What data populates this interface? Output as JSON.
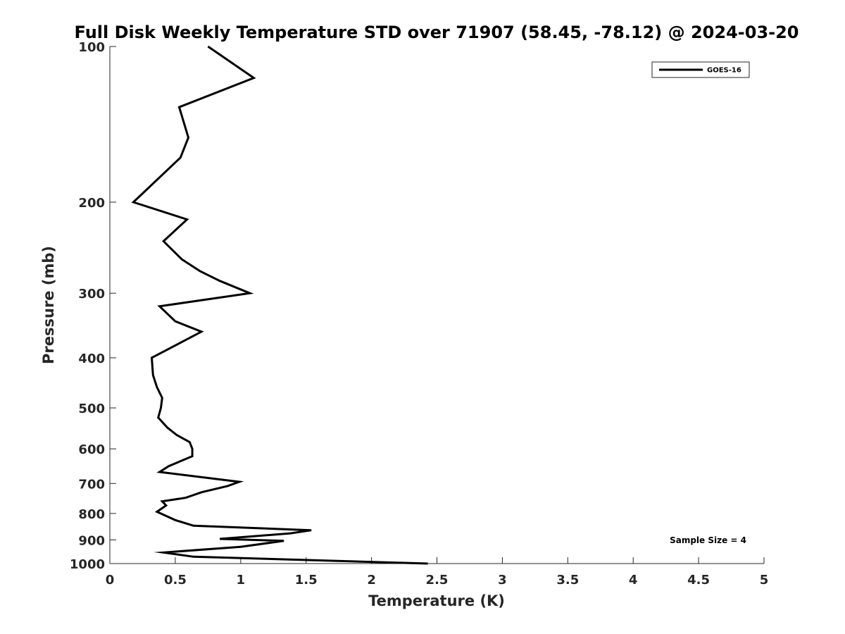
{
  "chart_data": {
    "type": "line",
    "title": "Full Disk Weekly Temperature STD over 71907 (58.45, -78.12) @ 2024-03-20",
    "xlabel": "Temperature (K)",
    "ylabel": "Pressure (mb)",
    "xlim": [
      0,
      5
    ],
    "ylim": [
      100,
      1000
    ],
    "y_scale": "log",
    "y_reversed": true,
    "x_ticks": [
      0,
      0.5,
      1,
      1.5,
      2,
      2.5,
      3,
      3.5,
      4,
      4.5,
      5
    ],
    "x_tick_labels": [
      "0",
      "0.5",
      "1",
      "1.5",
      "2",
      "2.5",
      "3",
      "3.5",
      "4",
      "4.5",
      "5"
    ],
    "y_ticks": [
      100,
      200,
      300,
      400,
      500,
      600,
      700,
      800,
      900,
      1000
    ],
    "y_tick_labels": [
      "100",
      "200",
      "300",
      "400",
      "500",
      "600",
      "700",
      "800",
      "900",
      "1000"
    ],
    "grid": false,
    "legend": {
      "position": "top-right",
      "entries": [
        "GOES-16"
      ]
    },
    "annotation": "Sample Size = 4",
    "series": [
      {
        "name": "GOES-16",
        "color": "#000000",
        "points": [
          [
            0.75,
            100
          ],
          [
            1.1,
            115
          ],
          [
            0.53,
            131
          ],
          [
            0.6,
            150
          ],
          [
            0.54,
            164
          ],
          [
            0.18,
            200
          ],
          [
            0.59,
            216
          ],
          [
            0.41,
            238
          ],
          [
            0.55,
            258
          ],
          [
            0.69,
            272
          ],
          [
            0.84,
            284
          ],
          [
            1.07,
            300
          ],
          [
            0.38,
            318
          ],
          [
            0.5,
            340
          ],
          [
            0.7,
            356
          ],
          [
            0.32,
            400
          ],
          [
            0.33,
            432
          ],
          [
            0.36,
            456
          ],
          [
            0.4,
            478
          ],
          [
            0.39,
            500
          ],
          [
            0.37,
            522
          ],
          [
            0.44,
            546
          ],
          [
            0.51,
            564
          ],
          [
            0.61,
            582
          ],
          [
            0.63,
            600
          ],
          [
            0.63,
            620
          ],
          [
            0.45,
            648
          ],
          [
            0.38,
            665
          ],
          [
            0.99,
            695
          ],
          [
            0.9,
            708
          ],
          [
            0.7,
            728
          ],
          [
            0.58,
            746
          ],
          [
            0.4,
            758
          ],
          [
            0.43,
            772
          ],
          [
            0.36,
            794
          ],
          [
            0.5,
            824
          ],
          [
            0.64,
            845
          ],
          [
            1.54,
            862
          ],
          [
            1.38,
            874
          ],
          [
            0.84,
            896
          ],
          [
            1.33,
            904
          ],
          [
            1.0,
            928
          ],
          [
            0.41,
            952
          ],
          [
            0.64,
            970
          ],
          [
            2.43,
            1000
          ]
        ]
      }
    ]
  }
}
